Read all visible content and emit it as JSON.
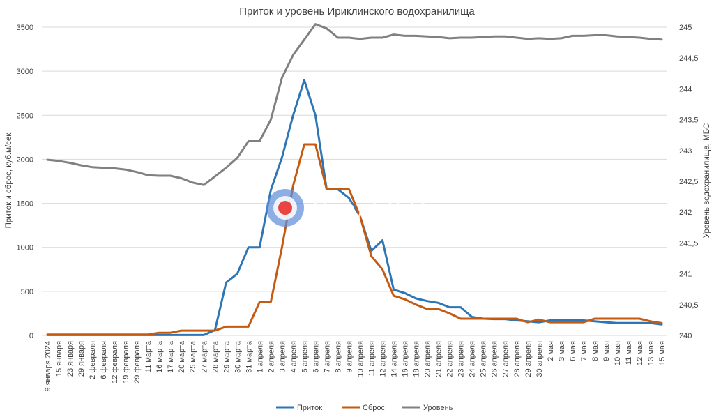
{
  "chart_data": {
    "type": "line",
    "title": "Приток и уровень Ириклинского водохранилища",
    "ylabel": "Приток и сброс, куб.м/сек",
    "y2label": "Уровень водохранилища, МБС",
    "ylim": [
      0,
      3500
    ],
    "yticks": [
      "0",
      "500",
      "1000",
      "1500",
      "2000",
      "2500",
      "3000",
      "3500"
    ],
    "y2lim": [
      240,
      245
    ],
    "y2ticks": [
      "240",
      "240,5",
      "241",
      "241,5",
      "242",
      "242,5",
      "243",
      "243,5",
      "244",
      "244,5",
      "245"
    ],
    "grid": true,
    "legend_position": "bottom",
    "categories": [
      "9 января 2024",
      "15 января",
      "23 января",
      "29 января",
      "2 февраля",
      "6 февраля",
      "12 февраля",
      "19 февраля",
      "29 февраля",
      "11 марта",
      "16 марта",
      "17 марта",
      "20 марта",
      "25 марта",
      "27 марта",
      "28 марта",
      "29 марта",
      "30 марта",
      "31 марта",
      "1 апреля",
      "2 апреля",
      "3 апреля",
      "4 апреля",
      "5 апреля",
      "6 апреля",
      "7 апреля",
      "8 апреля",
      "9 апреля",
      "10 апреля",
      "11 апреля",
      "12 апреля",
      "14 апреля",
      "16 апреля",
      "18 апреля",
      "20 апреля",
      "21 апреля",
      "22 апреля",
      "23 апреля",
      "24 апреля",
      "25 апреля",
      "26 апреля",
      "27 апреля",
      "28 апреля",
      "29 апреля",
      "30 апреля",
      "2 мая",
      "3 мая",
      "6 мая",
      "7 мая",
      "8 мая",
      "9 мая",
      "10 мая",
      "11 мая",
      "12 мая",
      "13 мая",
      "15 мая"
    ],
    "series": [
      {
        "name": "Приток",
        "color": "#2E75B6",
        "axis": "left",
        "values": [
          5,
          5,
          5,
          5,
          5,
          5,
          5,
          5,
          5,
          5,
          5,
          5,
          5,
          5,
          5,
          60,
          600,
          700,
          1000,
          1000,
          1650,
          2020,
          2500,
          2900,
          2500,
          1660,
          1660,
          1560,
          1350,
          960,
          1080,
          520,
          480,
          420,
          390,
          370,
          320,
          320,
          210,
          190,
          185,
          185,
          170,
          160,
          150,
          170,
          175,
          170,
          170,
          160,
          150,
          140,
          140,
          140,
          140,
          125
        ]
      },
      {
        "name": "Сброс",
        "color": "#C55A11",
        "axis": "left",
        "values": [
          10,
          10,
          10,
          10,
          10,
          10,
          10,
          10,
          10,
          10,
          30,
          30,
          55,
          55,
          55,
          55,
          100,
          100,
          100,
          380,
          380,
          1000,
          1700,
          2170,
          2170,
          1660,
          1660,
          1660,
          1350,
          900,
          750,
          450,
          410,
          350,
          300,
          300,
          250,
          190,
          190,
          190,
          190,
          190,
          190,
          150,
          180,
          150,
          150,
          150,
          150,
          190,
          190,
          190,
          190,
          190,
          160,
          140
        ]
      },
      {
        "name": "Уровень",
        "color": "#808080",
        "axis": "right",
        "values": [
          242.85,
          242.83,
          242.8,
          242.76,
          242.73,
          242.72,
          242.71,
          242.69,
          242.65,
          242.6,
          242.59,
          242.59,
          242.55,
          242.48,
          242.44,
          242.58,
          242.72,
          242.88,
          243.15,
          243.15,
          243.5,
          244.18,
          244.55,
          244.8,
          245.05,
          244.98,
          244.83,
          244.83,
          244.81,
          244.83,
          244.83,
          244.88,
          244.86,
          244.86,
          244.85,
          244.84,
          244.82,
          244.83,
          244.83,
          244.84,
          244.85,
          244.85,
          244.83,
          244.81,
          244.82,
          244.81,
          244.82,
          244.86,
          244.86,
          244.87,
          244.87,
          244.85,
          244.84,
          244.83,
          244.81,
          244.8
        ]
      }
    ]
  },
  "watermark": {
    "text": "Урал56.Ру",
    "ring_color": "#5B8BD9",
    "dot_color": "#E8322E"
  },
  "colors": {
    "grid": "#D9D9D9",
    "text": "#404040"
  }
}
